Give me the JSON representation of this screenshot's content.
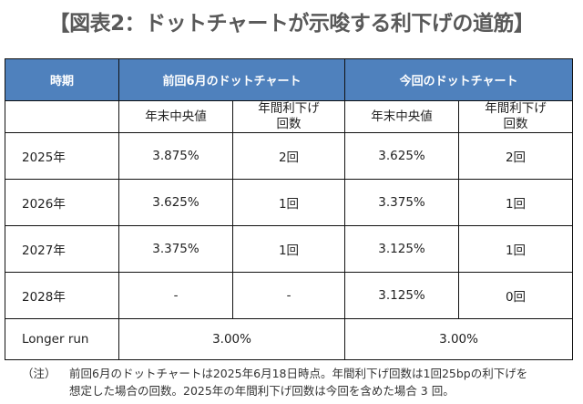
{
  "title": "【図表2：ドットチャートが示唆する利下げの道筋】",
  "table": {
    "headers": [
      "時期",
      "前回6月のドットチャート",
      "今回のドットチャート"
    ],
    "subheaders": [
      "年末中央値",
      "年間利下げ\n回数",
      "年末中央値",
      "年間利下げ\n回数"
    ],
    "rows": [
      {
        "label": "2025年",
        "cells": [
          "3.875%",
          "2回",
          "3.625%",
          "2回"
        ]
      },
      {
        "label": "2026年",
        "cells": [
          "3.625%",
          "1回",
          "3.375%",
          "1回"
        ]
      },
      {
        "label": "2027年",
        "cells": [
          "3.375%",
          "1回",
          "3.125%",
          "1回"
        ]
      },
      {
        "label": "2028年",
        "cells": [
          "-",
          "-",
          "3.125%",
          "0回"
        ]
      }
    ],
    "longer_run": {
      "label": "Longer run",
      "prev": "3.00%",
      "curr": "3.00%"
    },
    "header_color": "#4f81bd"
  },
  "note": {
    "tag": "（注）",
    "line1": "前回6月のドットチャートは2025年6月18日時点。年間利下げ回数は1回25bpの利下げを",
    "line2": "想定した場合の回数。2025年の年間利下げ回数は今回を含めた場合 3 回。"
  }
}
